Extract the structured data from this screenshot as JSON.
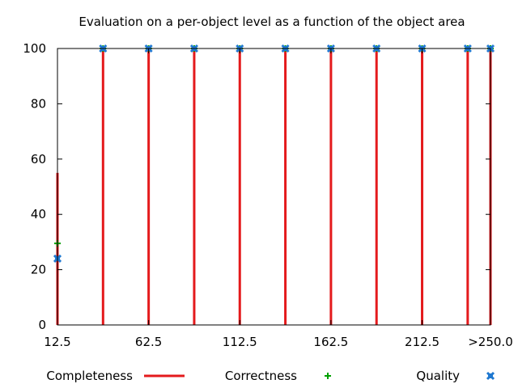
{
  "chart_data": {
    "type": "bar",
    "title": "Evaluation on a per-object level as a function of the object area",
    "xlabel": "",
    "ylabel": "",
    "ylim": [
      0,
      100
    ],
    "yticks": [
      0,
      20,
      40,
      60,
      80,
      100
    ],
    "x": [
      12.5,
      37.5,
      62.5,
      87.5,
      112.5,
      137.5,
      162.5,
      187.5,
      212.5,
      237.5,
      250
    ],
    "xlim": [
      12.5,
      250
    ],
    "xticks": [
      {
        "value": 12.5,
        "label": "12.5"
      },
      {
        "value": 62.5,
        "label": "62.5"
      },
      {
        "value": 112.5,
        "label": "112.5"
      },
      {
        "value": 162.5,
        "label": "162.5"
      },
      {
        "value": 212.5,
        "label": "212.5"
      },
      {
        "value": 250,
        "label": ">250.0"
      }
    ],
    "grid": false,
    "legend": "bottom",
    "series": [
      {
        "name": "Completeness",
        "style": "impulse",
        "color": "#e41a1c",
        "values": [
          55,
          100,
          100,
          100,
          100,
          100,
          100,
          100,
          100,
          100,
          100
        ]
      },
      {
        "name": "Correctness",
        "style": "plus",
        "color": "#00a000",
        "values": [
          29.5,
          100,
          100,
          100,
          100,
          100,
          100,
          100,
          100,
          100,
          100
        ]
      },
      {
        "name": "Quality",
        "style": "cross",
        "color": "#1f78d0",
        "values": [
          24,
          100,
          100,
          100,
          100,
          100,
          100,
          100,
          100,
          100,
          100
        ]
      }
    ]
  }
}
